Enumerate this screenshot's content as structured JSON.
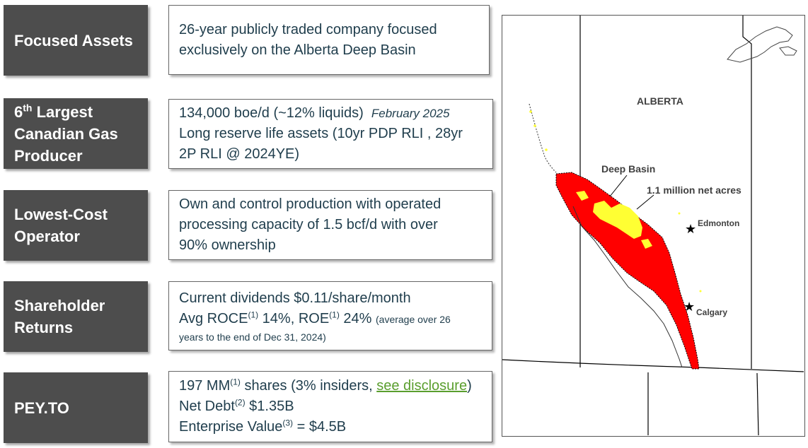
{
  "rows": [
    {
      "label_lines": [
        "Focused Assets"
      ],
      "lines": [
        "26-year publicly traded company focused",
        "exclusively on the Alberta Deep Basin"
      ]
    },
    {
      "label_line1_number": "6",
      "label_line1_sup": "th",
      "label_line1_rest": " Largest",
      "label_line2": "Canadian Gas",
      "label_line3": "Producer",
      "line1_main": "134,000 boe/d (~12% liquids)",
      "line1_date": "February 2025",
      "line2": "Long reserve life assets (10yr PDP RLI , 28yr",
      "line3": "2P RLI @ 2024YE)"
    },
    {
      "label_lines": [
        "Lowest-Cost",
        "Operator"
      ],
      "lines": [
        "Own and control production with operated",
        "processing capacity of 1.5 bcf/d with over",
        "90% ownership"
      ]
    },
    {
      "label_lines": [
        "Shareholder",
        "Returns"
      ],
      "line1": "Current dividends $0.11/share/month",
      "line2_a": "Avg ROCE",
      "line2_sup1": "(1)",
      "line2_b": " 14%, ROE",
      "line2_sup2": "(1)",
      "line2_c": " 24%",
      "line2_small": "(average over 26",
      "line3_small": "years to the end of Dec 31, 2024)"
    },
    {
      "label_lines": [
        "PEY.TO"
      ],
      "line1_a": "197 MM",
      "line1_sup": "(1)",
      "line1_b": " shares (3% insiders, ",
      "line1_link": "see disclosure",
      "line1_c": ")",
      "line2_a": "Net Debt",
      "line2_sup": "(2)",
      "line2_b": " $1.35B",
      "line3_a": "Enterprise Value",
      "line3_sup": "(3)",
      "line3_b": " = $4.5B"
    }
  ],
  "map": {
    "province": "ALBERTA",
    "area": "Deep Basin",
    "acres": "1.1 million net acres",
    "city1": "Edmonton",
    "city2": "Calgary",
    "colors": {
      "basin": "#ff0000",
      "acreage": "#ffff33",
      "outline": "#000000"
    }
  }
}
